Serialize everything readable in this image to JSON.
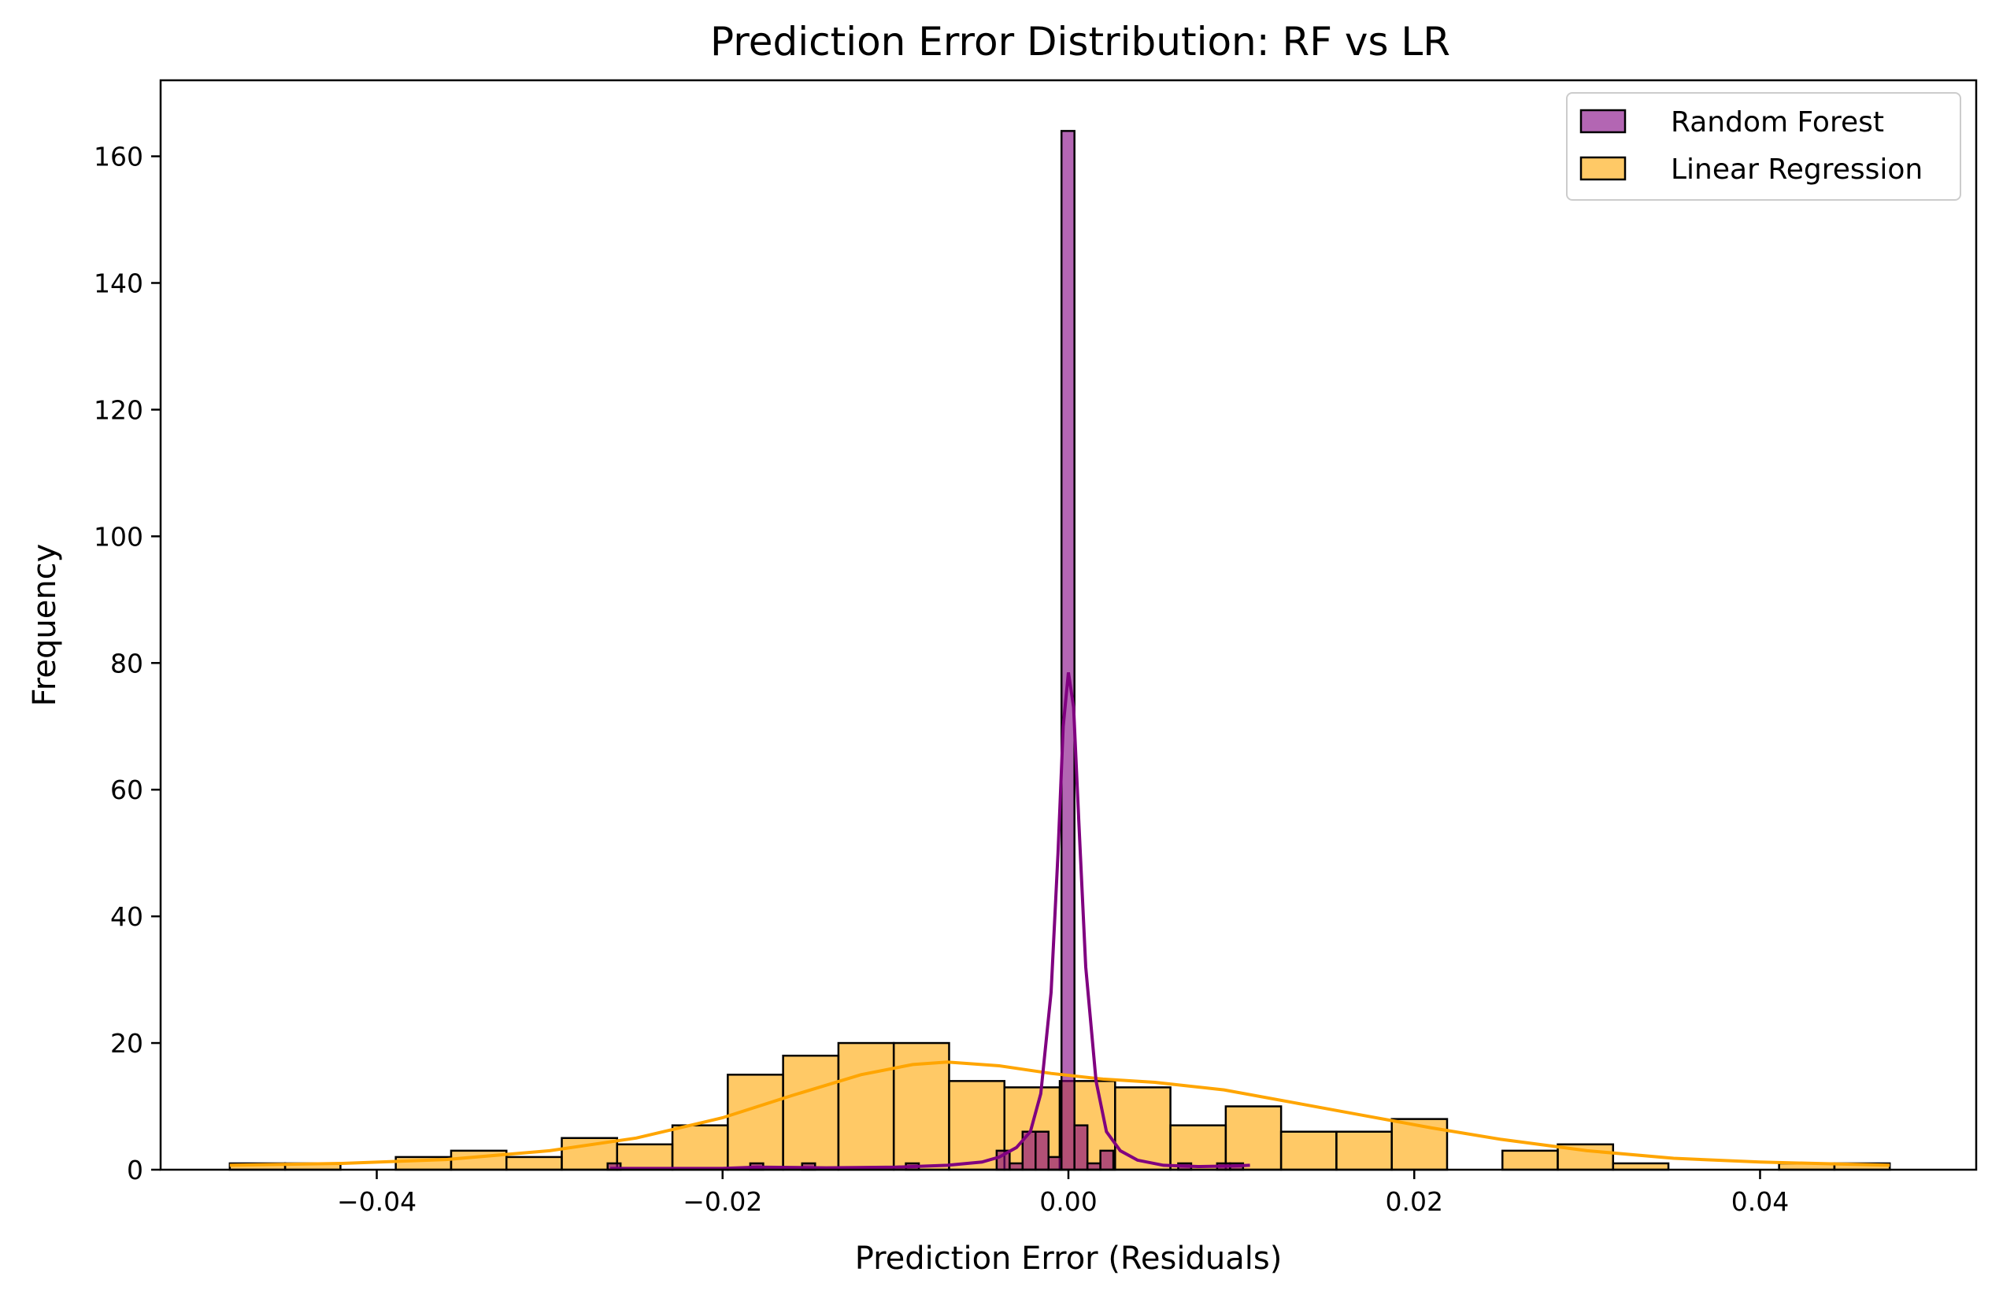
{
  "chart_data": {
    "type": "histogram",
    "title": "Prediction Error Distribution: RF vs LR",
    "xlabel": "Prediction Error (Residuals)",
    "ylabel": "Frequency",
    "xlim": [
      -0.0525,
      0.0525
    ],
    "ylim": [
      0,
      172
    ],
    "xticks": [
      -0.04,
      -0.02,
      0.0,
      0.02,
      0.04
    ],
    "xtick_labels": [
      "−0.04",
      "−0.02",
      "0.00",
      "0.02",
      "0.04"
    ],
    "yticks": [
      0,
      20,
      40,
      60,
      80,
      100,
      120,
      140,
      160
    ],
    "ytick_labels": [
      "0",
      "20",
      "40",
      "60",
      "80",
      "100",
      "120",
      "140",
      "160"
    ],
    "grid": false,
    "legend_position": "top-right",
    "series": [
      {
        "name": "Linear Regression",
        "color": "#ffa500",
        "fill_opacity": 0.6,
        "kde": true,
        "bin_edges": [
          -0.0485,
          -0.0453,
          -0.0421,
          -0.0389,
          -0.0357,
          -0.0325,
          -0.0293,
          -0.0261,
          -0.0229,
          -0.0197,
          -0.0165,
          -0.0133,
          -0.0101,
          -0.0069,
          -0.0037,
          -0.0005,
          0.0027,
          0.0059,
          0.0091,
          0.0123,
          0.0155,
          0.0187,
          0.0219,
          0.0251,
          0.0283,
          0.0315,
          0.0347,
          0.0379,
          0.0411,
          0.0443,
          0.0475
        ],
        "counts": [
          1,
          1,
          0,
          2,
          3,
          2,
          5,
          4,
          7,
          15,
          18,
          20,
          20,
          14,
          13,
          14,
          13,
          7,
          10,
          6,
          6,
          8,
          0,
          3,
          4,
          1,
          0,
          0,
          1,
          1
        ],
        "kde_points": [
          [
            -0.0485,
            0.7
          ],
          [
            -0.042,
            1.0
          ],
          [
            -0.036,
            1.6
          ],
          [
            -0.03,
            3.0
          ],
          [
            -0.025,
            5.0
          ],
          [
            -0.02,
            8.2
          ],
          [
            -0.016,
            11.7
          ],
          [
            -0.012,
            15.0
          ],
          [
            -0.009,
            16.6
          ],
          [
            -0.007,
            17.0
          ],
          [
            -0.004,
            16.4
          ],
          [
            -0.001,
            15.2
          ],
          [
            0.002,
            14.3
          ],
          [
            0.005,
            13.8
          ],
          [
            0.009,
            12.6
          ],
          [
            0.013,
            10.6
          ],
          [
            0.017,
            8.6
          ],
          [
            0.021,
            6.6
          ],
          [
            0.025,
            4.8
          ],
          [
            0.03,
            3.0
          ],
          [
            0.035,
            1.8
          ],
          [
            0.04,
            1.2
          ],
          [
            0.0475,
            0.7
          ]
        ]
      },
      {
        "name": "Random Forest",
        "color": "#800080",
        "fill_opacity": 0.6,
        "kde": true,
        "bin_edges": [
          -0.02665,
          -0.0259,
          -0.02515,
          -0.0244,
          -0.02365,
          -0.0229,
          -0.02215,
          -0.0214,
          -0.02065,
          -0.0199,
          -0.01915,
          -0.0184,
          -0.01765,
          -0.0169,
          -0.01615,
          -0.0154,
          -0.01465,
          -0.0139,
          -0.01315,
          -0.0124,
          -0.01165,
          -0.0109,
          -0.01015,
          -0.0094,
          -0.00865,
          -0.0079,
          -0.00715,
          -0.0064,
          -0.00565,
          -0.0049,
          -0.00415,
          -0.0034,
          -0.00265,
          -0.0019,
          -0.00115,
          -0.0004,
          0.00035,
          0.0011,
          0.00185,
          0.0026,
          0.00335,
          0.0041,
          0.00485,
          0.0056,
          0.00635,
          0.0071,
          0.00785,
          0.0086,
          0.00935,
          0.0101
        ],
        "counts": [
          1,
          0,
          0,
          0,
          0,
          0,
          0,
          0,
          0,
          0,
          0,
          1,
          0,
          0,
          0,
          1,
          0,
          0,
          0,
          0,
          0,
          0,
          0,
          1,
          0,
          0,
          0,
          0,
          0,
          0,
          3,
          1,
          6,
          6,
          2,
          164,
          7,
          1,
          3,
          0,
          0,
          0,
          0,
          0,
          1,
          0,
          0,
          1,
          1
        ],
        "kde_points": [
          [
            -0.0265,
            0.2
          ],
          [
            -0.02,
            0.2
          ],
          [
            -0.018,
            0.4
          ],
          [
            -0.014,
            0.3
          ],
          [
            -0.01,
            0.4
          ],
          [
            -0.007,
            0.7
          ],
          [
            -0.005,
            1.2
          ],
          [
            -0.004,
            2.0
          ],
          [
            -0.003,
            3.5
          ],
          [
            -0.0022,
            6.0
          ],
          [
            -0.0016,
            12.0
          ],
          [
            -0.001,
            28.0
          ],
          [
            -0.0006,
            50.0
          ],
          [
            -0.0003,
            70.0
          ],
          [
            0.0,
            78.5
          ],
          [
            0.0003,
            73.0
          ],
          [
            0.0006,
            55.0
          ],
          [
            0.001,
            32.0
          ],
          [
            0.0016,
            14.0
          ],
          [
            0.0022,
            6.0
          ],
          [
            0.003,
            3.0
          ],
          [
            0.004,
            1.5
          ],
          [
            0.0055,
            0.7
          ],
          [
            0.0075,
            0.5
          ],
          [
            0.0095,
            0.6
          ],
          [
            0.0105,
            0.7
          ]
        ]
      }
    ],
    "legend": [
      {
        "label": "Random Forest",
        "color": "#800080"
      },
      {
        "label": "Linear Regression",
        "color": "#ffa500"
      }
    ]
  }
}
